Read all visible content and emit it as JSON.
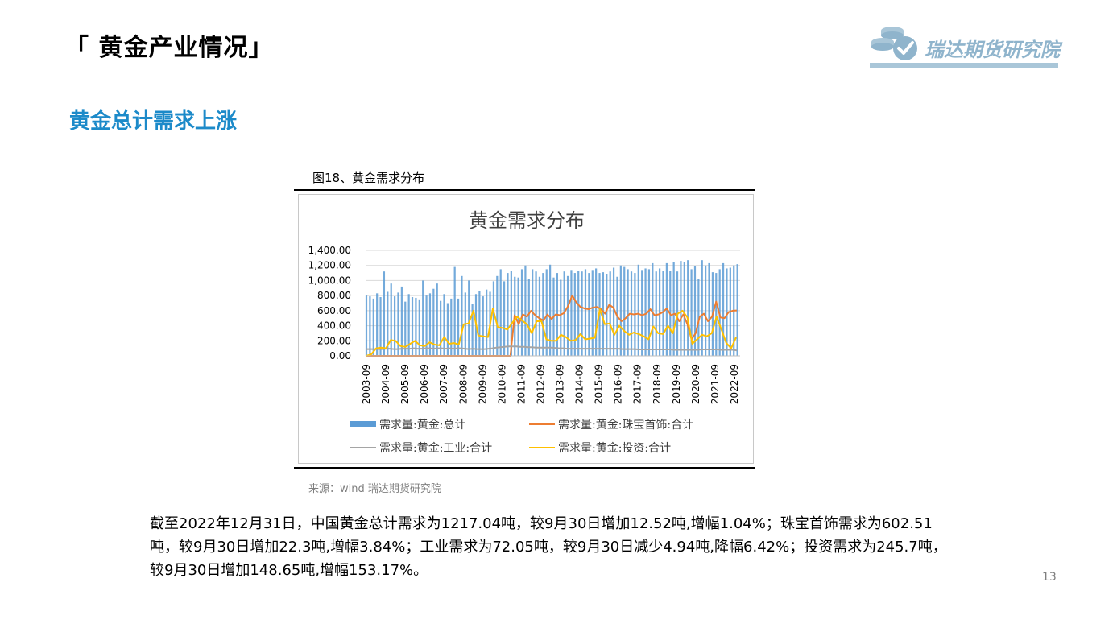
{
  "header": {
    "title": "「 黄金产业情况」"
  },
  "logo": {
    "text": "瑞达期货研究院"
  },
  "section": {
    "title": "黄金总计需求上涨"
  },
  "figure": {
    "caption": "图18、黄金需求分布",
    "source": "来源：wind   瑞达期货研究院"
  },
  "summary": {
    "text": "截至2022年12月31日，中国黄金总计需求为1217.04吨，较9月30日增加12.52吨,增幅1.04%；珠宝首饰需求为602.51吨，较9月30日增加22.3吨,增幅3.84%；工业需求为72.05吨，较9月30日减少4.94吨,降幅6.42%；投资需求为245.7吨，较9月30日增加148.65吨,增幅153.17%。"
  },
  "page": {
    "number": "13"
  },
  "colors": {
    "total": "#5b9bd5",
    "jewelry": "#ed7d31",
    "industry": "#a5a5a5",
    "investment": "#ffc000",
    "accent": "#1c8ac9"
  },
  "chart_data": {
    "type": "bar",
    "title": "黄金需求分布",
    "ylim": [
      0,
      1400
    ],
    "yticks": [
      "0.00",
      "200.00",
      "400.00",
      "600.00",
      "800.00",
      "1,000.00",
      "1,200.00",
      "1,400.00"
    ],
    "xtick_labels": [
      "2003-09",
      "2004-09",
      "2005-09",
      "2006-09",
      "2007-09",
      "2008-09",
      "2009-09",
      "2010-09",
      "2011-09",
      "2012-09",
      "2013-09",
      "2014-09",
      "2015-09",
      "2016-09",
      "2017-09",
      "2018-09",
      "2019-09",
      "2020-09",
      "2021-09",
      "2022-09"
    ],
    "start_month": "2003-09",
    "frequency": "monthly",
    "grid": true,
    "legend_position": "bottom",
    "series": [
      {
        "name": "需求量:黄金:总计",
        "kind": "bar",
        "values": [
          800,
          790,
          760,
          830,
          780,
          1120,
          850,
          960,
          790,
          840,
          920,
          720,
          820,
          780,
          770,
          750,
          1000,
          800,
          830,
          890,
          960,
          730,
          820,
          700,
          760,
          1180,
          760,
          1060,
          840,
          1000,
          690,
          820,
          860,
          790,
          880,
          850,
          990,
          1060,
          1150,
          990,
          1100,
          1130,
          1050,
          1040,
          1150,
          1200,
          1020,
          1150,
          1120,
          1050,
          1100,
          1150,
          1210,
          1040,
          1100,
          1010,
          1120,
          1060,
          1140,
          1100,
          1130,
          1120,
          1150,
          1100,
          1140,
          1160,
          1100,
          1110,
          1090,
          1120,
          1170,
          1050,
          1200,
          1180,
          1150,
          1120,
          1100,
          1210,
          1140,
          1160,
          1150,
          1230,
          1120,
          1160,
          1130,
          1230,
          1130,
          1250,
          1120,
          1260,
          1240,
          1270,
          1150,
          1190,
          1020,
          1270,
          1200,
          1230,
          1110,
          1100,
          1150,
          1230,
          1160,
          1170,
          1200,
          1217
        ]
      },
      {
        "name": "需求量:黄金:珠宝首饰:合计",
        "kind": "line",
        "values": [
          0,
          0,
          0,
          0,
          0,
          0,
          0,
          0,
          0,
          0,
          0,
          0,
          0,
          0,
          0,
          0,
          0,
          0,
          0,
          0,
          0,
          0,
          0,
          0,
          0,
          0,
          0,
          0,
          0,
          0,
          0,
          0,
          0,
          0,
          0,
          0,
          540,
          420,
          550,
          520,
          600,
          540,
          500,
          470,
          550,
          490,
          550,
          540,
          570,
          660,
          800,
          710,
          650,
          630,
          620,
          640,
          650,
          620,
          560,
          680,
          640,
          520,
          460,
          500,
          560,
          550,
          560,
          540,
          560,
          620,
          540,
          550,
          580,
          630,
          540,
          560,
          460,
          550,
          420,
          220,
          300,
          520,
          560,
          460,
          520,
          720,
          510,
          500,
          580,
          600,
          603
        ]
      },
      {
        "name": "需求量:黄金:工业:合计",
        "kind": "line",
        "values": [
          90,
          90,
          90,
          90,
          90,
          95,
          95,
          90,
          90,
          95,
          95,
          95,
          100,
          95,
          95,
          100,
          100,
          95,
          100,
          100,
          95,
          100,
          95,
          100,
          100,
          95,
          90,
          95,
          90,
          90,
          90,
          95,
          100,
          110,
          115,
          120,
          125,
          125,
          125,
          120,
          120,
          115,
          115,
          110,
          110,
          110,
          110,
          110,
          105,
          100,
          100,
          95,
          95,
          95,
          95,
          95,
          95,
          95,
          95,
          95,
          95,
          95,
          95,
          95,
          95,
          90,
          90,
          90,
          90,
          85,
          85,
          85,
          85,
          85,
          85,
          85,
          85,
          85,
          80,
          80,
          80,
          80,
          80,
          80,
          80,
          85,
          85,
          85,
          85,
          85,
          80,
          80,
          80,
          80,
          72
        ]
      },
      {
        "name": "需求量:黄金:投资:合计",
        "kind": "line",
        "values": [
          0,
          20,
          100,
          110,
          100,
          210,
          200,
          130,
          120,
          160,
          200,
          140,
          130,
          180,
          150,
          140,
          250,
          160,
          170,
          150,
          420,
          430,
          600,
          270,
          260,
          250,
          630,
          380,
          370,
          350,
          440,
          520,
          470,
          420,
          300,
          460,
          460,
          220,
          200,
          200,
          280,
          250,
          200,
          210,
          290,
          220,
          230,
          240,
          620,
          420,
          430,
          280,
          400,
          330,
          280,
          310,
          290,
          260,
          220,
          390,
          300,
          290,
          400,
          300,
          560,
          600,
          510,
          160,
          220,
          280,
          260,
          300,
          520,
          350,
          170,
          100,
          246
        ]
      }
    ]
  }
}
